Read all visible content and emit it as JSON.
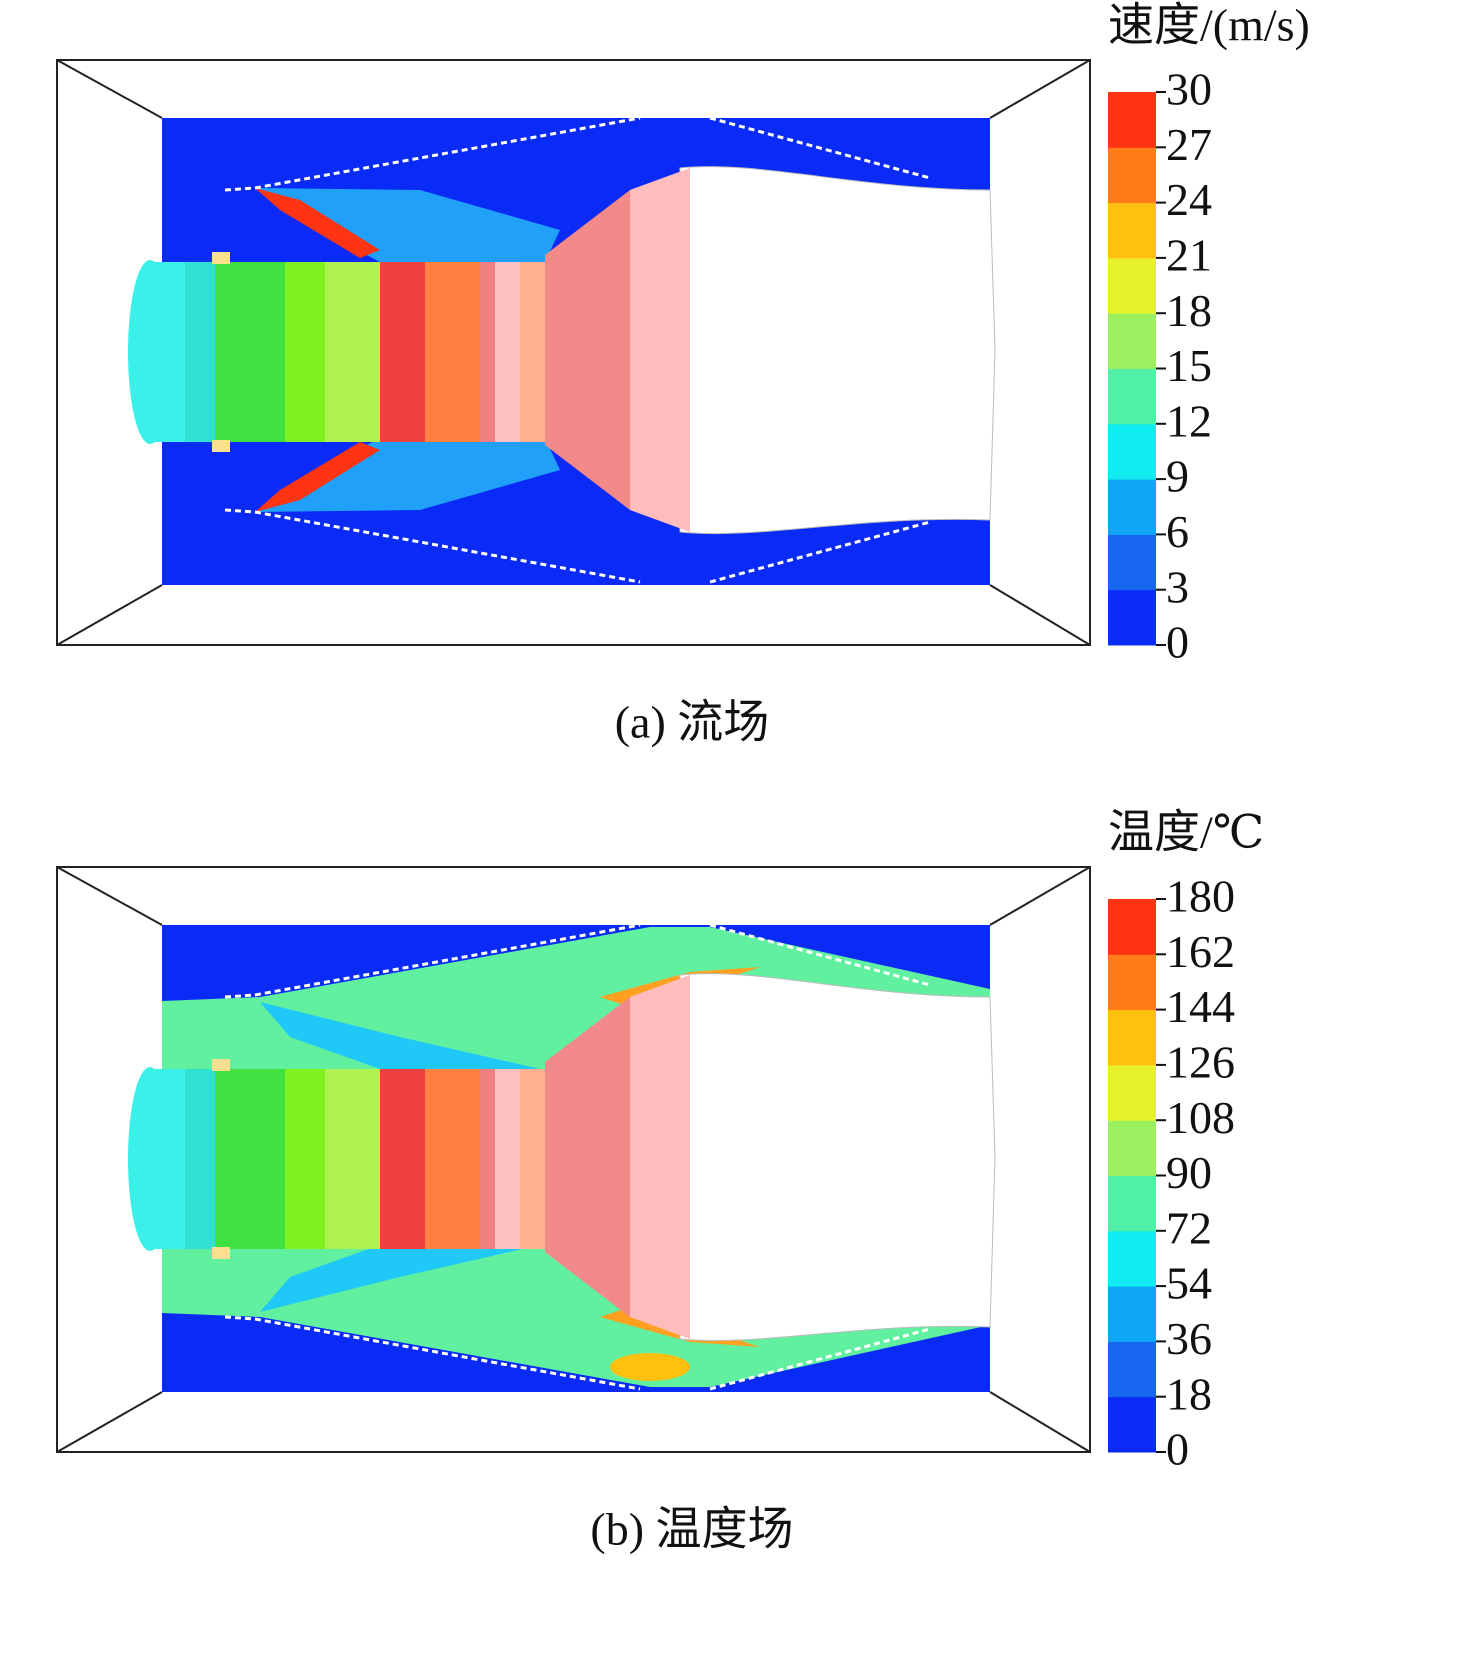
{
  "panels": [
    {
      "colorbar": {
        "title": "速度/(m/s)",
        "ticks": [
          0,
          3,
          6,
          9,
          12,
          15,
          18,
          21,
          24,
          27,
          30
        ],
        "colors": [
          "#0a2af5",
          "#1766f0",
          "#10a6f8",
          "#10ecf0",
          "#50f0a8",
          "#9cf060",
          "#e8f22a",
          "#ffc010",
          "#ff7c18",
          "#ff3412"
        ]
      },
      "caption": "(a) 流场"
    },
    {
      "colorbar": {
        "title": "温度/℃",
        "ticks": [
          0,
          18,
          36,
          54,
          72,
          90,
          108,
          126,
          144,
          162,
          180
        ],
        "colors": [
          "#0a2af5",
          "#1766f0",
          "#10a6f8",
          "#10ecf0",
          "#50f0a8",
          "#9cf060",
          "#e8f22a",
          "#ffc010",
          "#ff7c18",
          "#ff3412"
        ]
      },
      "caption": "(b) 温度场"
    }
  ]
}
